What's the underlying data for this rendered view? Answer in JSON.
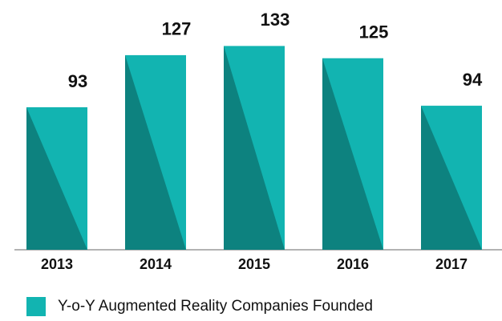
{
  "chart_data": {
    "type": "bar",
    "categories": [
      "2013",
      "2014",
      "2015",
      "2016",
      "2017"
    ],
    "series": [
      {
        "name": "Y-o-Y Augmented Reality Companies Founded",
        "color": "#12b4b1",
        "values": [
          93,
          127,
          133,
          125,
          94
        ]
      }
    ],
    "ylim": [
      0,
      163
    ],
    "legend": "bottom-left"
  }
}
